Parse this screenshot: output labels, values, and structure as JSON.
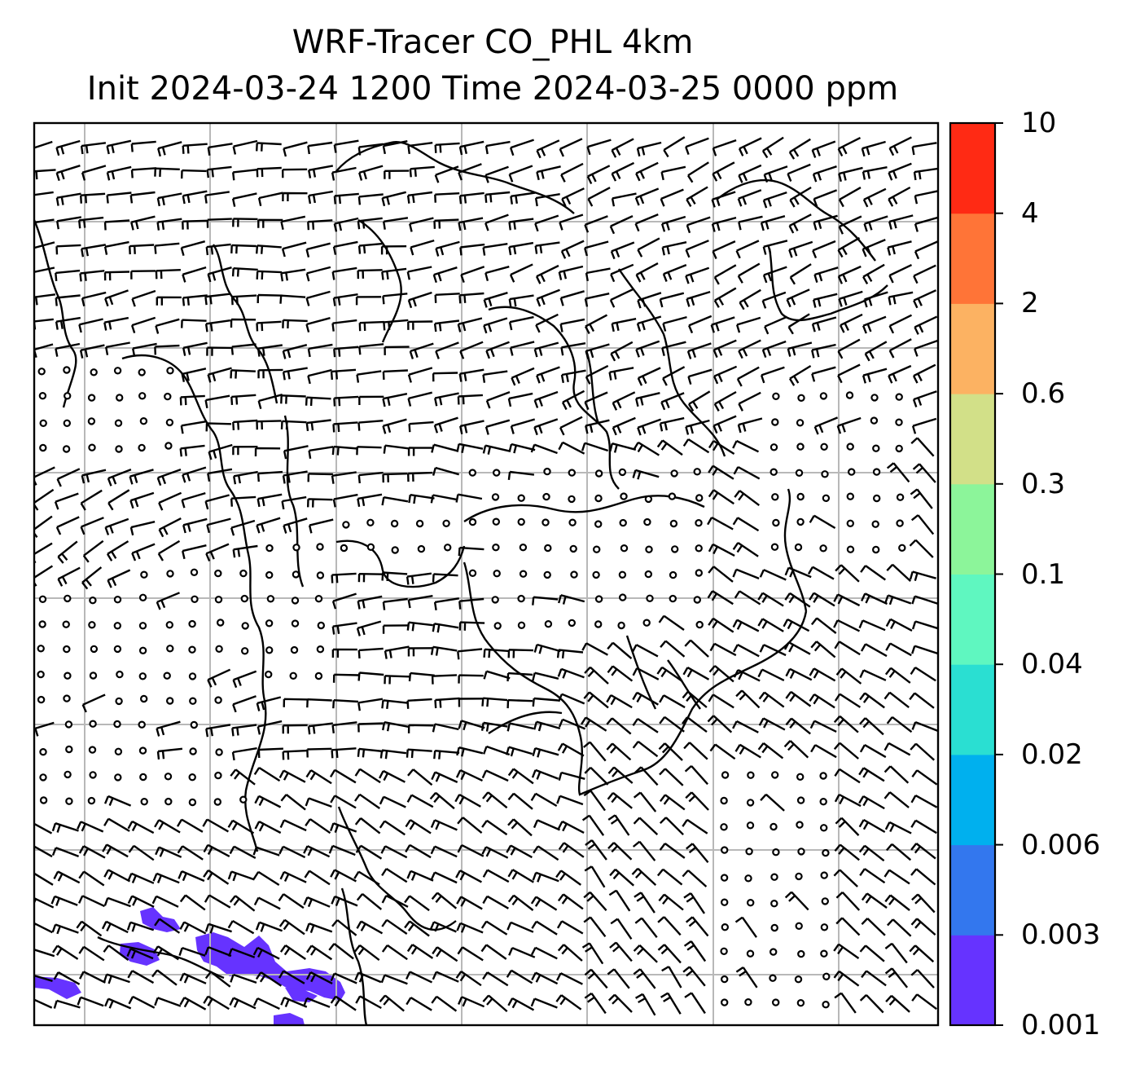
{
  "title": {
    "line1": "WRF-Tracer CO_PHL 4km",
    "line2": "Init 2024-03-24 1200 Time 2024-03-25 0000 ppm"
  },
  "colorbar": {
    "labels": [
      "0.001",
      "0.003",
      "0.006",
      "0.02",
      "0.04",
      "0.1",
      "0.3",
      "0.6",
      "2",
      "4",
      "10"
    ],
    "colors": [
      "#6633ff",
      "#3377ee",
      "#00b0ee",
      "#2adfd2",
      "#5ff7c0",
      "#8cf59a",
      "#d2e088",
      "#fcb262",
      "#ff7437",
      "#ff2a14"
    ]
  },
  "map": {
    "grid": "on",
    "gridline_color": "#b8b8b8",
    "tracer_fill_color": "#6633ff",
    "symbols": [
      "wind-barbs",
      "calm-circles",
      "coastlines"
    ]
  }
}
